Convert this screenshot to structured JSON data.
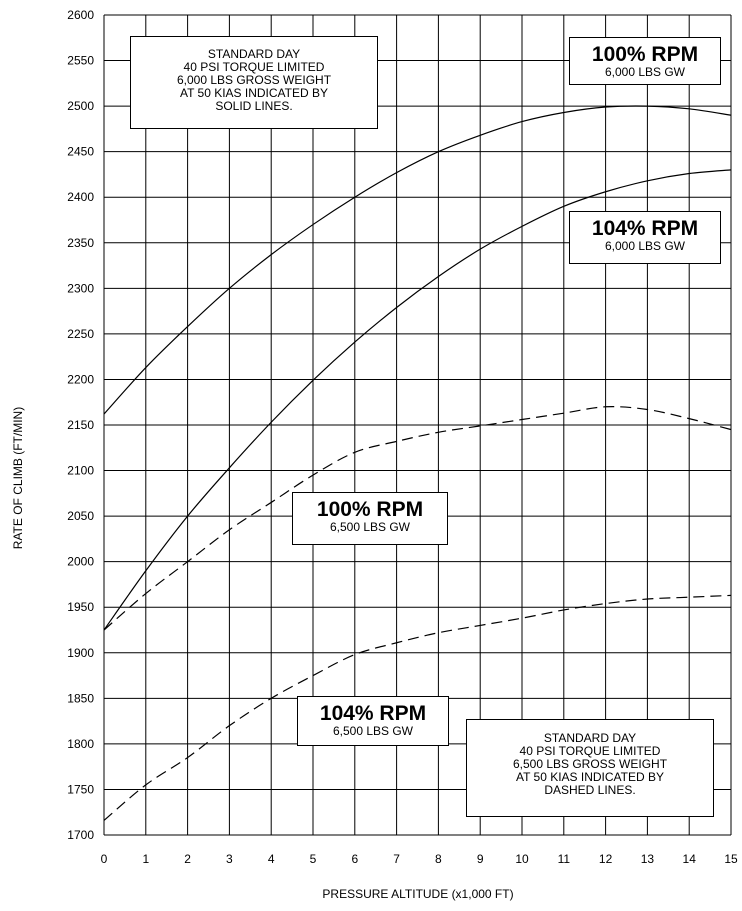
{
  "chart_data": {
    "type": "line",
    "title": "",
    "xlabel": "PRESSURE ALTITUDE (x1,000 FT)",
    "ylabel": "RATE OF CLIMB (FT/MIN)",
    "xlim": [
      0,
      15
    ],
    "ylim": [
      1700,
      2600
    ],
    "x_ticks": [
      "0",
      "1",
      "2",
      "3",
      "4",
      "5",
      "6",
      "7",
      "8",
      "9",
      "10",
      "11",
      "12",
      "13",
      "14",
      "15"
    ],
    "y_ticks": [
      "1700",
      "1750",
      "1800",
      "1850",
      "1900",
      "1950",
      "2000",
      "2050",
      "2100",
      "2150",
      "2200",
      "2250",
      "2300",
      "2350",
      "2400",
      "2450",
      "2500",
      "2550",
      "2600"
    ],
    "grid": true,
    "x": [
      0,
      1,
      2,
      3,
      4,
      5,
      6,
      7,
      8,
      9,
      10,
      11,
      12,
      13,
      14,
      15
    ],
    "series": [
      {
        "id": "rpm100-6000",
        "style": "solid",
        "values": [
          2162,
          2213,
          2258,
          2300,
          2337,
          2370,
          2400,
          2427,
          2450,
          2468,
          2483,
          2493,
          2499,
          2500,
          2497,
          2490
        ]
      },
      {
        "id": "rpm104-6000",
        "style": "solid",
        "values": [
          1925,
          1990,
          2050,
          2103,
          2153,
          2199,
          2241,
          2279,
          2313,
          2343,
          2368,
          2390,
          2406,
          2418,
          2426,
          2430
        ]
      },
      {
        "id": "rpm100-6500",
        "style": "dashed",
        "values": [
          1925,
          1965,
          2000,
          2035,
          2065,
          2095,
          2120,
          2132,
          2142,
          2149,
          2156,
          2163,
          2170,
          2167,
          2157,
          2145
        ]
      },
      {
        "id": "rpm104-6500",
        "style": "dashed",
        "values": [
          1716,
          1755,
          1785,
          1820,
          1850,
          1875,
          1898,
          1911,
          1922,
          1930,
          1938,
          1947,
          1954,
          1959,
          1961,
          1963
        ]
      }
    ],
    "notes": {
      "solid": [
        "STANDARD DAY",
        "40 PSI TORQUE LIMITED",
        "6,000 LBS GROSS WEIGHT",
        "AT 50 KIAS INDICATED BY",
        "SOLID LINES."
      ],
      "dashed": [
        "STANDARD DAY",
        "40 PSI TORQUE LIMITED",
        "6,500 LBS GROSS WEIGHT",
        "AT 50 KIAS INDICATED BY",
        "DASHED LINES."
      ]
    },
    "curve_labels": {
      "rpm100_6000": {
        "title": "100% RPM",
        "sub": "6,000 LBS GW"
      },
      "rpm104_6000": {
        "title": "104% RPM",
        "sub": "6,000 LBS GW"
      },
      "rpm100_6500": {
        "title": "100% RPM",
        "sub": "6,500 LBS GW"
      },
      "rpm104_6500": {
        "title": "104% RPM",
        "sub": "6,500 LBS GW"
      }
    }
  }
}
